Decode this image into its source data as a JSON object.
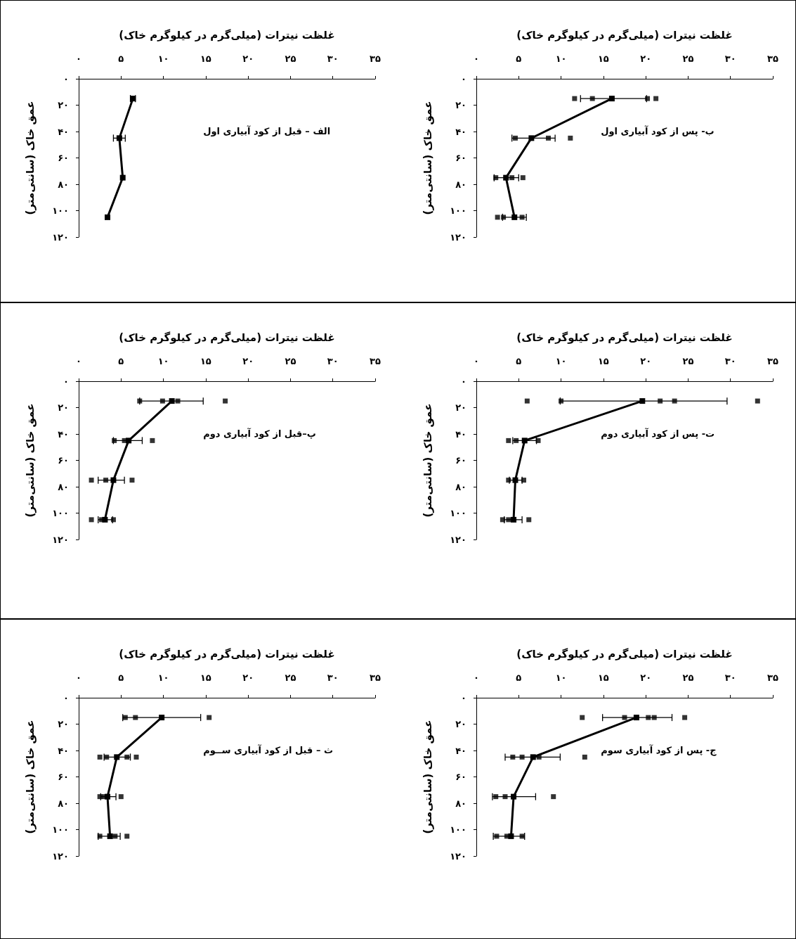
{
  "chart_data": [
    {
      "type": "line",
      "xlabel": "غلظت نیترات (میلی‌گرم در کیلوگرم خاک)",
      "ylabel": "عمق خاک (سانتی‌متر)",
      "annotations": [
        "الف – قبل از کود آبیاری اول"
      ],
      "marker": "square",
      "xlim": [
        0,
        35
      ],
      "xticks": [
        {
          "value": 0,
          "label": "۰"
        },
        {
          "value": 5,
          "label": "۵"
        },
        {
          "value": 10,
          "label": "۱۰"
        },
        {
          "value": 15,
          "label": "۱۵"
        },
        {
          "value": 20,
          "label": "۲۰"
        },
        {
          "value": 25,
          "label": "۲۵"
        },
        {
          "value": 30,
          "label": "۳۰"
        },
        {
          "value": 35,
          "label": "۳۵"
        }
      ],
      "ylim": [
        120,
        0
      ],
      "yticks": [
        {
          "value": 0,
          "label": "۰"
        },
        {
          "value": 20,
          "label": "۲۰"
        },
        {
          "value": 40,
          "label": "۴۰"
        },
        {
          "value": 60,
          "label": "۶۰"
        },
        {
          "value": 80,
          "label": "۸۰"
        },
        {
          "value": 100,
          "label": "۱۰۰"
        },
        {
          "value": 120,
          "label": "۱۲۰"
        }
      ],
      "series": [
        {
          "type": "line",
          "color": "#000000",
          "x": [
            6.4,
            4.8,
            5.2,
            3.4
          ],
          "values": [
            15,
            45,
            75,
            105
          ],
          "xerrors": [
            [
              6.1,
              6.7
            ],
            [
              4.1,
              5.5
            ],
            null,
            null
          ]
        }
      ]
    },
    {
      "type": "line",
      "xlabel": "غلظت نیترات (میلی‌گرم در کیلوگرم خاک)",
      "ylabel": "عمق خاک (سانتی‌متر)",
      "annotations": [
        "ب- پس از کود آبیاری اول"
      ],
      "marker": "square",
      "xlim": [
        0,
        35
      ],
      "xticks": [
        {
          "value": 0,
          "label": "۰"
        },
        {
          "value": 5,
          "label": "۵"
        },
        {
          "value": 10,
          "label": "۱۰"
        },
        {
          "value": 15,
          "label": "۱۵"
        },
        {
          "value": 20,
          "label": "۲۰"
        },
        {
          "value": 25,
          "label": "۲۵"
        },
        {
          "value": 30,
          "label": "۳۰"
        },
        {
          "value": 35,
          "label": "۳۵"
        }
      ],
      "ylim": [
        120,
        0
      ],
      "yticks": [
        {
          "value": 0,
          "label": "۰"
        },
        {
          "value": 20,
          "label": "۲۰"
        },
        {
          "value": 40,
          "label": "۴۰"
        },
        {
          "value": 60,
          "label": "۶۰"
        },
        {
          "value": 80,
          "label": "۸۰"
        },
        {
          "value": 100,
          "label": "۱۰۰"
        },
        {
          "value": 120,
          "label": "۱۲۰"
        }
      ],
      "series": [
        {
          "type": "scatter",
          "color": "#000000",
          "x": [
            11.6,
            13.7,
            20.2,
            21.2,
            4.6,
            8.5,
            11.1,
            2.3,
            4.2,
            5.5,
            2.5,
            3.2,
            5.4
          ],
          "values": [
            15,
            15,
            15,
            15,
            45,
            45,
            45,
            75,
            75,
            75,
            105,
            105,
            105
          ]
        },
        {
          "type": "line",
          "color": "#000000",
          "x": [
            16.0,
            6.5,
            3.5,
            4.5
          ],
          "values": [
            15,
            45,
            75,
            105
          ],
          "xerrors": [
            [
              12.3,
              20.1
            ],
            [
              4.2,
              9.3
            ],
            [
              2.1,
              5.0
            ],
            [
              3.1,
              5.9
            ]
          ]
        }
      ]
    },
    {
      "type": "line",
      "xlabel": "غلظت نیترات (میلی‌گرم در کیلوگرم خاک)",
      "ylabel": "عمق خاک (سانتی‌متر)",
      "annotations": [
        "پ–قبل از کود آبیاری دوم"
      ],
      "marker": "square",
      "xlim": [
        0,
        35
      ],
      "xticks": [
        {
          "value": 0,
          "label": "۰"
        },
        {
          "value": 5,
          "label": "۵"
        },
        {
          "value": 10,
          "label": "۱۰"
        },
        {
          "value": 15,
          "label": "۱۵"
        },
        {
          "value": 20,
          "label": "۲۰"
        },
        {
          "value": 25,
          "label": "۲۵"
        },
        {
          "value": 30,
          "label": "۳۰"
        },
        {
          "value": 35,
          "label": "۳۵"
        }
      ],
      "ylim": [
        120,
        0
      ],
      "yticks": [
        {
          "value": 0,
          "label": "۰"
        },
        {
          "value": 20,
          "label": "۲۰"
        },
        {
          "value": 40,
          "label": "۴۰"
        },
        {
          "value": 60,
          "label": "۶۰"
        },
        {
          "value": 80,
          "label": "۸۰"
        },
        {
          "value": 100,
          "label": "۱۰۰"
        },
        {
          "value": 120,
          "label": "۱۲۰"
        }
      ],
      "series": [
        {
          "type": "scatter",
          "color": "#000000",
          "x": [
            7.2,
            9.9,
            11.7,
            17.3,
            4.2,
            5.4,
            8.7,
            1.5,
            3.2,
            6.3,
            1.5,
            2.7,
            4.1
          ],
          "values": [
            15,
            15,
            15,
            15,
            45,
            45,
            45,
            75,
            75,
            75,
            105,
            105,
            105
          ]
        },
        {
          "type": "line",
          "color": "#000000",
          "x": [
            11.0,
            5.9,
            4.1,
            3.1
          ],
          "values": [
            15,
            45,
            75,
            105
          ],
          "xerrors": [
            [
              7.2,
              14.7
            ],
            [
              4.1,
              7.5
            ],
            [
              2.3,
              5.4
            ],
            [
              2.3,
              4.0
            ]
          ]
        }
      ]
    },
    {
      "type": "line",
      "xlabel": "غلظت نیترات (میلی‌گرم در کیلوگرم خاک)",
      "ylabel": "عمق خاک (سانتی‌متر)",
      "annotations": [
        "ت- پس از کود آبیاری دوم"
      ],
      "marker": "square",
      "xlim": [
        0,
        35
      ],
      "xticks": [
        {
          "value": 0,
          "label": "۰"
        },
        {
          "value": 5,
          "label": "۵"
        },
        {
          "value": 10,
          "label": "۱۰"
        },
        {
          "value": 15,
          "label": "۱۵"
        },
        {
          "value": 20,
          "label": "۲۰"
        },
        {
          "value": 25,
          "label": "۲۵"
        },
        {
          "value": 30,
          "label": "۳۰"
        },
        {
          "value": 35,
          "label": "۳۵"
        }
      ],
      "ylim": [
        120,
        0
      ],
      "yticks": [
        {
          "value": 0,
          "label": "۰"
        },
        {
          "value": 20,
          "label": "۲۰"
        },
        {
          "value": 40,
          "label": "۴۰"
        },
        {
          "value": 60,
          "label": "۶۰"
        },
        {
          "value": 80,
          "label": "۸۰"
        },
        {
          "value": 100,
          "label": "۱۰۰"
        },
        {
          "value": 120,
          "label": "۱۲۰"
        }
      ],
      "series": [
        {
          "type": "scatter",
          "color": "#000000",
          "x": [
            6.0,
            10.0,
            21.7,
            23.4,
            33.2,
            3.8,
            4.7,
            7.3,
            3.8,
            5.6,
            3.1,
            3.8,
            6.2
          ],
          "values": [
            15,
            15,
            15,
            15,
            15,
            45,
            45,
            45,
            75,
            75,
            105,
            105,
            105
          ]
        },
        {
          "type": "line",
          "color": "#000000",
          "x": [
            19.6,
            5.7,
            4.6,
            4.4
          ],
          "values": [
            15,
            45,
            75,
            105
          ],
          "xerrors": [
            [
              9.9,
              29.6
            ],
            [
              4.3,
              7.1
            ],
            [
              3.9,
              5.4
            ],
            [
              3.3,
              5.4
            ]
          ]
        }
      ]
    },
    {
      "type": "line",
      "xlabel": "غلظت نیترات (میلی‌گرم در کیلوگرم خاک)",
      "ylabel": "عمق خاک (سانتی‌متر)",
      "annotations": [
        "ث – قبل از کود آبیاری ســوم"
      ],
      "marker": "square",
      "xlim": [
        0,
        35
      ],
      "xticks": [
        {
          "value": 0,
          "label": "۰"
        },
        {
          "value": 5,
          "label": "۵"
        },
        {
          "value": 10,
          "label": "۱۰"
        },
        {
          "value": 15,
          "label": "۱۵"
        },
        {
          "value": 20,
          "label": "۲۰"
        },
        {
          "value": 25,
          "label": "۲۵"
        },
        {
          "value": 30,
          "label": "۳۰"
        },
        {
          "value": 35,
          "label": "۳۵"
        }
      ],
      "ylim": [
        120,
        0
      ],
      "yticks": [
        {
          "value": 0,
          "label": "۰"
        },
        {
          "value": 20,
          "label": "۲۰"
        },
        {
          "value": 40,
          "label": "۴۰"
        },
        {
          "value": 60,
          "label": "۶۰"
        },
        {
          "value": 80,
          "label": "۸۰"
        },
        {
          "value": 100,
          "label": "۱۰۰"
        },
        {
          "value": 120,
          "label": "۱۲۰"
        }
      ],
      "series": [
        {
          "type": "scatter",
          "color": "#000000",
          "x": [
            5.5,
            6.7,
            15.4,
            2.5,
            3.3,
            5.7,
            6.8,
            2.5,
            3.0,
            5.0,
            2.5,
            4.3,
            5.7
          ],
          "values": [
            15,
            15,
            15,
            45,
            45,
            45,
            45,
            75,
            75,
            75,
            105,
            105,
            105
          ]
        },
        {
          "type": "line",
          "color": "#000000",
          "x": [
            9.8,
            4.5,
            3.4,
            3.7
          ],
          "values": [
            15,
            45,
            75,
            105
          ],
          "xerrors": [
            [
              5.2,
              14.4
            ],
            [
              3.0,
              6.1
            ],
            [
              2.6,
              4.4
            ],
            [
              2.3,
              4.9
            ]
          ]
        }
      ]
    },
    {
      "type": "line",
      "xlabel": "غلظت نیترات (میلی‌گرم در کیلوگرم خاک)",
      "ylabel": "عمق خاک (سانتی‌متر)",
      "annotations": [
        "ج- پس از کود آبیاری سوم"
      ],
      "marker": "square",
      "xlim": [
        0,
        35
      ],
      "xticks": [
        {
          "value": 0,
          "label": "۰"
        },
        {
          "value": 5,
          "label": "۵"
        },
        {
          "value": 10,
          "label": "۱۰"
        },
        {
          "value": 15,
          "label": "۱۵"
        },
        {
          "value": 20,
          "label": "۲۰"
        },
        {
          "value": 25,
          "label": "۲۵"
        },
        {
          "value": 30,
          "label": "۳۰"
        },
        {
          "value": 35,
          "label": "۳۵"
        }
      ],
      "ylim": [
        120,
        0
      ],
      "yticks": [
        {
          "value": 0,
          "label": "۰"
        },
        {
          "value": 20,
          "label": "۲۰"
        },
        {
          "value": 40,
          "label": "۴۰"
        },
        {
          "value": 60,
          "label": "۶۰"
        },
        {
          "value": 80,
          "label": "۸۰"
        },
        {
          "value": 100,
          "label": "۱۰۰"
        },
        {
          "value": 120,
          "label": "۱۲۰"
        }
      ],
      "series": [
        {
          "type": "scatter",
          "color": "#000000",
          "x": [
            12.5,
            17.5,
            20.3,
            21.0,
            24.6,
            4.3,
            5.4,
            7.4,
            12.8,
            2.3,
            3.4,
            9.1,
            2.4,
            3.6,
            5.4
          ],
          "values": [
            15,
            15,
            15,
            15,
            15,
            45,
            45,
            45,
            45,
            75,
            75,
            75,
            105,
            105,
            105
          ]
        },
        {
          "type": "line",
          "color": "#000000",
          "x": [
            18.9,
            6.7,
            4.4,
            4.1
          ],
          "values": [
            15,
            45,
            75,
            105
          ],
          "xerrors": [
            [
              14.9,
              23.1
            ],
            [
              3.4,
              9.9
            ],
            [
              1.9,
              7.0
            ],
            [
              2.0,
              5.7
            ]
          ]
        }
      ]
    }
  ]
}
